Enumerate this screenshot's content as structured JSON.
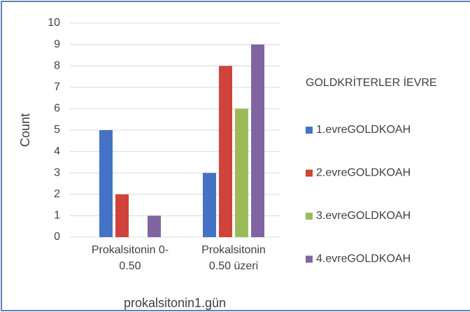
{
  "chart_data": {
    "type": "bar",
    "categories": [
      "Prokalsitonin 0-0.50",
      "Prokalsitonin 0.50 üzeri"
    ],
    "series": [
      {
        "name": "1.evreGOLDKOAH",
        "color": "#4472c4",
        "values": [
          5,
          3
        ]
      },
      {
        "name": "2.evreGOLDKOAH",
        "color": "#d0433a",
        "values": [
          2,
          8
        ]
      },
      {
        "name": "3.evreGOLDKOAH",
        "color": "#9bbb59",
        "values": [
          0,
          6
        ]
      },
      {
        "name": "4.evreGOLDKOAH",
        "color": "#8064a2",
        "values": [
          1,
          9
        ]
      }
    ],
    "y_label": "Count",
    "x_label": "prokalsitonin1.gün",
    "legend_title": "GOLDKRİTERLER İEVRE",
    "ylim": [
      0,
      10
    ],
    "yticks": [
      0,
      1,
      2,
      3,
      4,
      5,
      6,
      7,
      8,
      9,
      10
    ],
    "grid": true
  }
}
